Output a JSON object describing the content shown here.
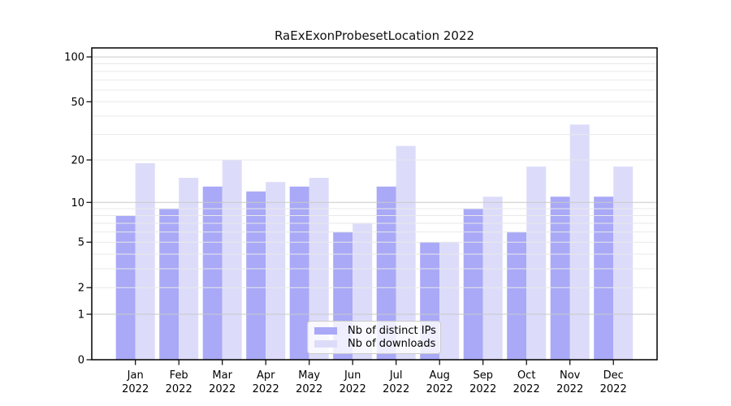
{
  "chart_data": {
    "type": "bar",
    "title": "RaExExonProbesetLocation 2022",
    "categories": [
      "Jan",
      "Feb",
      "Mar",
      "Apr",
      "May",
      "Jun",
      "Jul",
      "Aug",
      "Sep",
      "Oct",
      "Nov",
      "Dec"
    ],
    "x_tick_second_line": "2022",
    "series": [
      {
        "name": "Nb of distinct IPs",
        "color": "#a9a9f7",
        "values": [
          8,
          9,
          13,
          12,
          13,
          6,
          13,
          5,
          9,
          6,
          11,
          11
        ]
      },
      {
        "name": "Nb of downloads",
        "color": "#dcdcfa",
        "values": [
          19,
          15,
          20,
          14,
          15,
          7,
          25,
          5,
          11,
          18,
          35,
          18
        ]
      }
    ],
    "yscale": "log1p",
    "ylim": [
      0,
      117
    ],
    "y_tick_labels": [
      0,
      1,
      2,
      5,
      10,
      20,
      50,
      100
    ],
    "gridlines": {
      "major": [
        1,
        10,
        100
      ],
      "minor": [
        2,
        3,
        4,
        5,
        6,
        7,
        8,
        9,
        20,
        30,
        40,
        50,
        60,
        70,
        80,
        90
      ]
    },
    "grid": true,
    "legend_position": "lower center",
    "axis_color": "#000000",
    "text_color": "#000000",
    "gridline_major_color": "#c9c9c9",
    "gridline_minor_color": "#e9e9e9"
  }
}
